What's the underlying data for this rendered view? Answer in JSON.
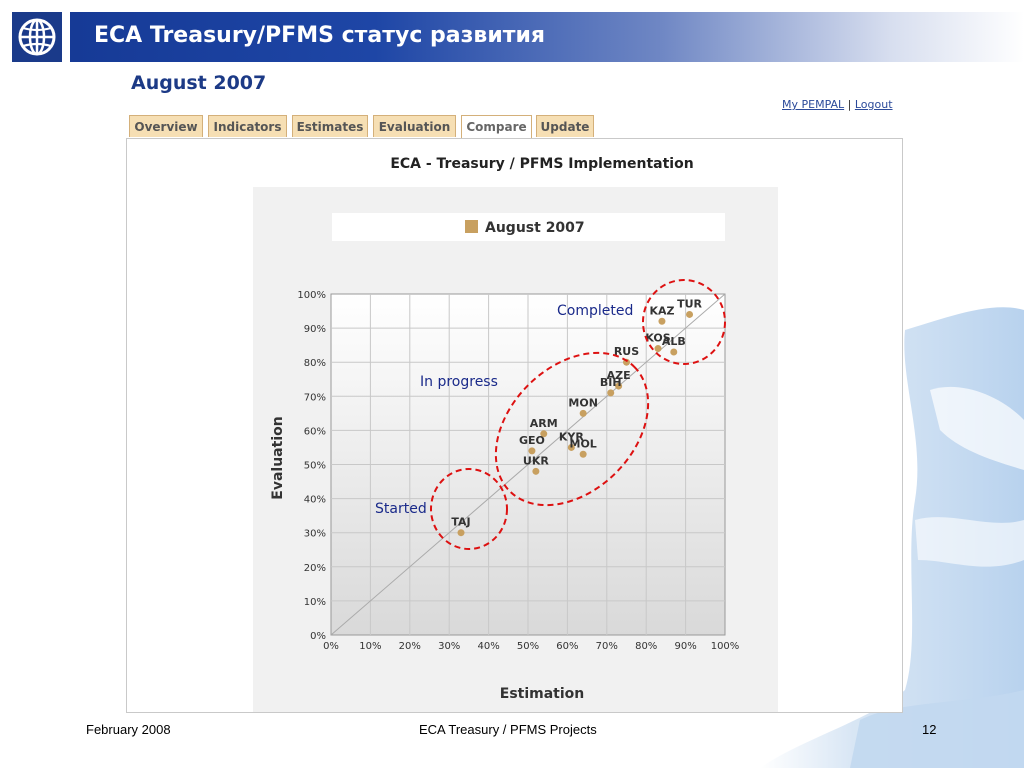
{
  "slide": {
    "title": "ECA Treasury/PFMS статус развития",
    "heading": "August 2007",
    "footer_left": "February 2008",
    "footer_center": "ECA Treasury / PFMS Projects",
    "footer_right": "12"
  },
  "colors": {
    "title_bar": "#1e46a6",
    "tab_bg": "#f6dfb4",
    "point": "#c8a060",
    "annotation_ring": "#dd1111",
    "annotation_text": "#1a2a8a"
  },
  "links": {
    "my_pempal": "My PEMPAL",
    "separator": "|",
    "logout": "Logout"
  },
  "tabs": [
    "Overview",
    "Indicators",
    "Estimates",
    "Evaluation",
    "Compare",
    "Update"
  ],
  "active_tab": "Compare",
  "chart_data": {
    "type": "scatter",
    "title": "ECA - Treasury / PFMS Implementation",
    "legend": "August 2007",
    "legend_position": "top",
    "xlabel": "Estimation",
    "ylabel": "Evaluation",
    "xlim": [
      0,
      100
    ],
    "ylim": [
      0,
      100
    ],
    "xticks": [
      "0%",
      "10%",
      "20%",
      "30%",
      "40%",
      "50%",
      "60%",
      "70%",
      "80%",
      "90%",
      "100%"
    ],
    "yticks": [
      "0%",
      "10%",
      "20%",
      "30%",
      "40%",
      "50%",
      "60%",
      "70%",
      "80%",
      "90%",
      "100%"
    ],
    "grid": true,
    "diagonal_line": true,
    "points": [
      {
        "label": "TAJ",
        "x": 33,
        "y": 30
      },
      {
        "label": "UKR",
        "x": 52,
        "y": 48
      },
      {
        "label": "GEO",
        "x": 51,
        "y": 54
      },
      {
        "label": "ARM",
        "x": 54,
        "y": 59
      },
      {
        "label": "KYR",
        "x": 61,
        "y": 55
      },
      {
        "label": "MOL",
        "x": 64,
        "y": 53
      },
      {
        "label": "MON",
        "x": 64,
        "y": 65
      },
      {
        "label": "BIH",
        "x": 71,
        "y": 71
      },
      {
        "label": "AZE",
        "x": 73,
        "y": 73
      },
      {
        "label": "RUS",
        "x": 75,
        "y": 80
      },
      {
        "label": "KOS",
        "x": 83,
        "y": 84
      },
      {
        "label": "ALB",
        "x": 87,
        "y": 83
      },
      {
        "label": "KAZ",
        "x": 84,
        "y": 92
      },
      {
        "label": "TUR",
        "x": 91,
        "y": 94
      }
    ],
    "annotations": [
      {
        "label": "Completed"
      },
      {
        "label": "In progress"
      },
      {
        "label": "Started"
      }
    ]
  }
}
